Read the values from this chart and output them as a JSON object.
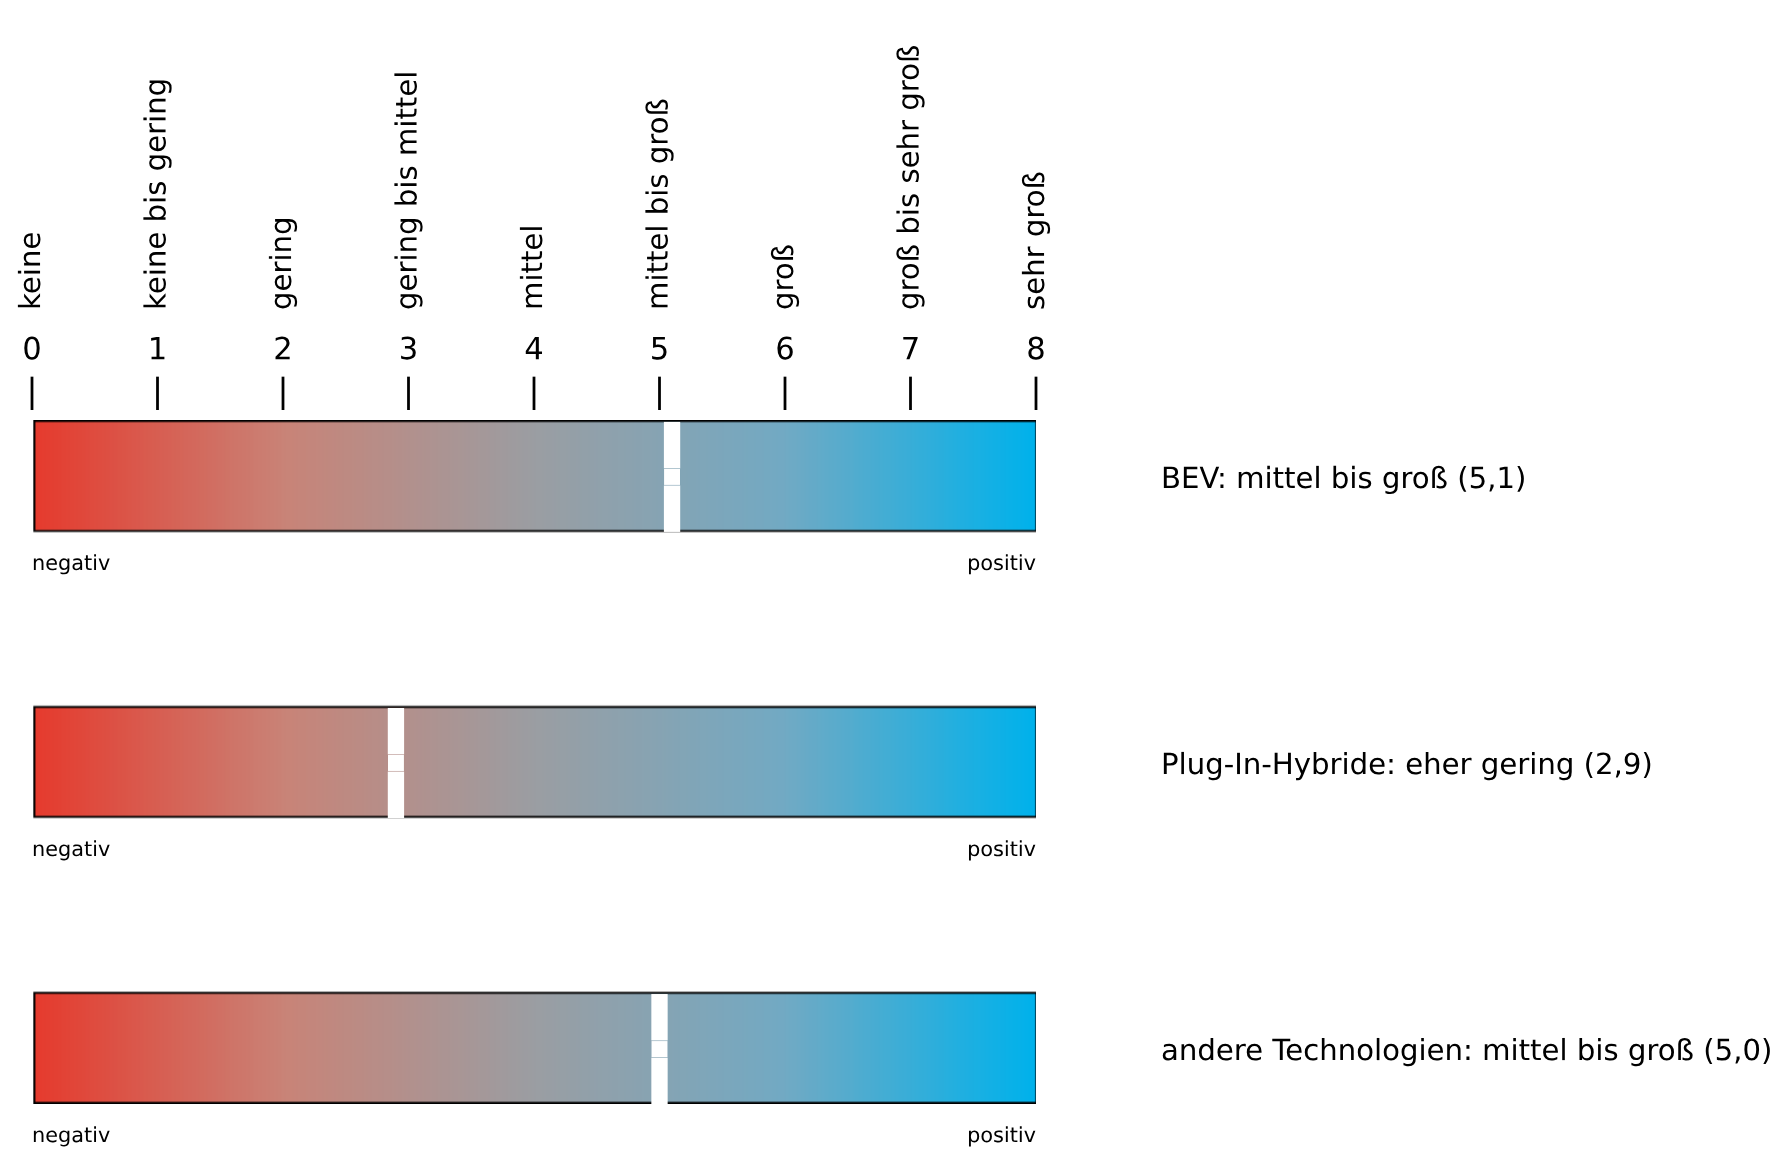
{
  "chart_data": {
    "type": "scatter",
    "orientation": "horizontal",
    "categories": [
      "BEV: mittel bis groß (5,1)",
      "Plug-In-Hybride: eher gering (2,9)",
      "andere Technologien: mittel bis groß (5,0)"
    ],
    "values": [
      5.1,
      2.9,
      5.0
    ],
    "color": "#ffffff",
    "xlim": [
      0,
      8
    ],
    "xticks": [
      0,
      1,
      2,
      3,
      4,
      5,
      6,
      7,
      8
    ],
    "annotations": [
      "keine",
      "keine bis gering",
      "gering",
      "gering bis mittel",
      "mittel",
      "mittel bis groß",
      "groß",
      "groß bis sehr groß",
      "sehr groß",
      "negativ",
      "positiv",
      "negativ",
      "positiv",
      "negativ",
      "positiv"
    ],
    "legend": false,
    "grid": false
  }
}
